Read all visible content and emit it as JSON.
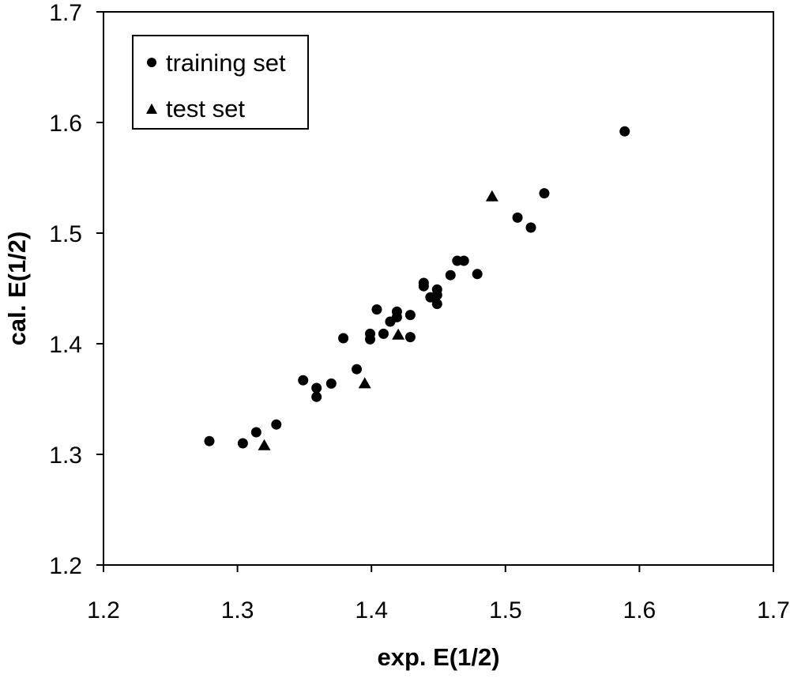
{
  "chart_data": {
    "type": "scatter",
    "xlabel": "exp. E(1/2)",
    "ylabel": "cal. E(1/2)",
    "xlim": [
      1.2,
      1.7
    ],
    "ylim": [
      1.2,
      1.7
    ],
    "x_ticks": [
      "1.2",
      "1.3",
      "1.4",
      "1.5",
      "1.6",
      "1.7"
    ],
    "y_ticks": [
      "1.2",
      "1.3",
      "1.4",
      "1.5",
      "1.6",
      "1.7"
    ],
    "legend_position": "top-left",
    "grid": false,
    "series": [
      {
        "name": "training set",
        "marker": "circle",
        "points": [
          [
            1.279,
            1.312
          ],
          [
            1.304,
            1.31
          ],
          [
            1.314,
            1.32
          ],
          [
            1.329,
            1.327
          ],
          [
            1.349,
            1.367
          ],
          [
            1.359,
            1.36
          ],
          [
            1.359,
            1.352
          ],
          [
            1.37,
            1.364
          ],
          [
            1.379,
            1.405
          ],
          [
            1.389,
            1.377
          ],
          [
            1.399,
            1.409
          ],
          [
            1.399,
            1.404
          ],
          [
            1.404,
            1.431
          ],
          [
            1.409,
            1.409
          ],
          [
            1.414,
            1.42
          ],
          [
            1.419,
            1.429
          ],
          [
            1.419,
            1.424
          ],
          [
            1.429,
            1.426
          ],
          [
            1.429,
            1.406
          ],
          [
            1.439,
            1.455
          ],
          [
            1.439,
            1.452
          ],
          [
            1.444,
            1.442
          ],
          [
            1.449,
            1.449
          ],
          [
            1.449,
            1.444
          ],
          [
            1.449,
            1.436
          ],
          [
            1.459,
            1.462
          ],
          [
            1.464,
            1.475
          ],
          [
            1.469,
            1.475
          ],
          [
            1.479,
            1.463
          ],
          [
            1.509,
            1.514
          ],
          [
            1.519,
            1.505
          ],
          [
            1.529,
            1.536
          ],
          [
            1.589,
            1.592
          ]
        ]
      },
      {
        "name": "test set",
        "marker": "triangle",
        "points": [
          [
            1.32,
            1.308
          ],
          [
            1.395,
            1.364
          ],
          [
            1.42,
            1.408
          ],
          [
            1.49,
            1.533
          ]
        ]
      }
    ]
  }
}
